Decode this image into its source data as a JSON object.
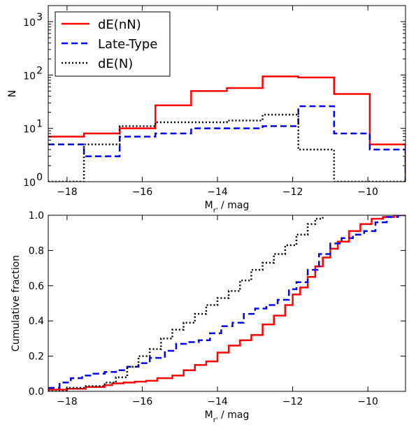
{
  "chart_data": [
    {
      "type": "histogram-step",
      "xlabel": "M_r' / mag",
      "ylabel": "N",
      "xlim": [
        -18.5,
        -9.0
      ],
      "ylim": [
        1,
        2000
      ],
      "yscale": "log",
      "xticks": [
        -18,
        -16,
        -14,
        -12,
        -10
      ],
      "xtick_labels": [
        "−18",
        "−16",
        "−14",
        "−12",
        "−10"
      ],
      "yticks": [
        1,
        10,
        100,
        1000
      ],
      "ytick_labels": [
        {
          "base": "10",
          "exp": "0"
        },
        {
          "base": "10",
          "exp": "1"
        },
        {
          "base": "10",
          "exp": "2"
        },
        {
          "base": "10",
          "exp": "3"
        }
      ],
      "legend_position": "upper-left",
      "grid": false,
      "series": [
        {
          "name": "dE(nN)",
          "color": "#ff0000",
          "style": "solid",
          "edges": [
            -18.5,
            -17.55,
            -16.6,
            -15.65,
            -14.7,
            -13.75,
            -12.8,
            -11.85,
            -10.9,
            -9.95,
            -9.0
          ],
          "values": [
            7,
            8,
            10,
            27,
            50,
            57,
            94,
            90,
            44,
            5
          ]
        },
        {
          "name": "Late-Type",
          "color": "#0000ff",
          "style": "dashed",
          "edges": [
            -18.5,
            -17.55,
            -16.6,
            -15.65,
            -14.7,
            -13.75,
            -12.8,
            -11.85,
            -10.9,
            -9.95,
            -9.0
          ],
          "values": [
            5,
            3,
            7,
            8,
            10,
            10,
            11,
            26,
            8,
            4
          ]
        },
        {
          "name": "dE(N)",
          "color": "#000000",
          "style": "dotted",
          "edges": [
            -18.5,
            -17.55,
            -16.6,
            -15.65,
            -14.7,
            -13.75,
            -12.8,
            -11.85,
            -10.9,
            -9.95,
            -9.0
          ],
          "values": [
            1,
            5,
            11,
            13,
            13,
            14,
            18,
            4,
            1,
            1
          ]
        }
      ]
    },
    {
      "type": "line",
      "xlabel": "M_r' / mag",
      "ylabel": "Cumulative fraction",
      "xlim": [
        -18.5,
        -9.0
      ],
      "ylim": [
        0.0,
        1.0
      ],
      "xticks": [
        -18,
        -16,
        -14,
        -12,
        -10
      ],
      "xtick_labels": [
        "−18",
        "−16",
        "−14",
        "−12",
        "−10"
      ],
      "yticks": [
        0.0,
        0.2,
        0.4,
        0.6,
        0.8,
        1.0
      ],
      "ytick_labels": [
        "0.0",
        "0.2",
        "0.4",
        "0.6",
        "0.8",
        "1.0"
      ],
      "grid": false,
      "series": [
        {
          "name": "dE(nN)",
          "color": "#ff0000",
          "style": "solid",
          "x": [
            -18.5,
            -18.0,
            -17.5,
            -17.0,
            -16.8,
            -16.5,
            -16.2,
            -15.9,
            -15.6,
            -15.2,
            -14.9,
            -14.6,
            -14.3,
            -14.0,
            -13.7,
            -13.4,
            -13.1,
            -12.8,
            -12.5,
            -12.2,
            -12.0,
            -11.8,
            -11.6,
            -11.4,
            -11.2,
            -11.0,
            -10.8,
            -10.5,
            -10.2,
            -9.9,
            -9.6,
            -9.3,
            -9.0
          ],
          "y": [
            0.01,
            0.015,
            0.025,
            0.035,
            0.045,
            0.05,
            0.055,
            0.06,
            0.075,
            0.09,
            0.12,
            0.15,
            0.17,
            0.22,
            0.26,
            0.29,
            0.32,
            0.38,
            0.43,
            0.49,
            0.55,
            0.59,
            0.65,
            0.71,
            0.76,
            0.81,
            0.85,
            0.91,
            0.95,
            0.98,
            0.99,
            1.0,
            1.0
          ]
        },
        {
          "name": "Late-Type",
          "color": "#0000ff",
          "style": "dashed",
          "x": [
            -18.5,
            -18.2,
            -17.9,
            -17.6,
            -17.3,
            -17.0,
            -16.7,
            -16.4,
            -16.1,
            -15.8,
            -15.4,
            -15.1,
            -14.8,
            -14.5,
            -14.2,
            -13.9,
            -13.6,
            -13.3,
            -13.0,
            -12.7,
            -12.4,
            -12.1,
            -11.9,
            -11.6,
            -11.3,
            -11.0,
            -10.7,
            -10.4,
            -10.1,
            -9.8,
            -9.5,
            -9.2,
            -9.0
          ],
          "y": [
            0.02,
            0.05,
            0.075,
            0.09,
            0.1,
            0.11,
            0.12,
            0.14,
            0.16,
            0.19,
            0.23,
            0.27,
            0.28,
            0.29,
            0.33,
            0.37,
            0.39,
            0.44,
            0.47,
            0.49,
            0.52,
            0.58,
            0.62,
            0.69,
            0.78,
            0.84,
            0.87,
            0.89,
            0.91,
            0.96,
            0.99,
            1.0,
            1.0
          ]
        },
        {
          "name": "dE(N)",
          "color": "#000000",
          "style": "dotted",
          "x": [
            -18.5,
            -18.0,
            -17.5,
            -17.0,
            -16.7,
            -16.4,
            -16.1,
            -15.8,
            -15.5,
            -15.2,
            -14.9,
            -14.6,
            -14.3,
            -14.0,
            -13.7,
            -13.4,
            -13.1,
            -12.8,
            -12.5,
            -12.2,
            -11.9,
            -11.6,
            -11.4,
            -11.2
          ],
          "y": [
            0.0,
            0.02,
            0.03,
            0.05,
            0.08,
            0.14,
            0.2,
            0.24,
            0.3,
            0.35,
            0.39,
            0.44,
            0.49,
            0.53,
            0.57,
            0.63,
            0.69,
            0.73,
            0.78,
            0.83,
            0.89,
            0.95,
            0.98,
            1.0
          ]
        }
      ]
    }
  ]
}
